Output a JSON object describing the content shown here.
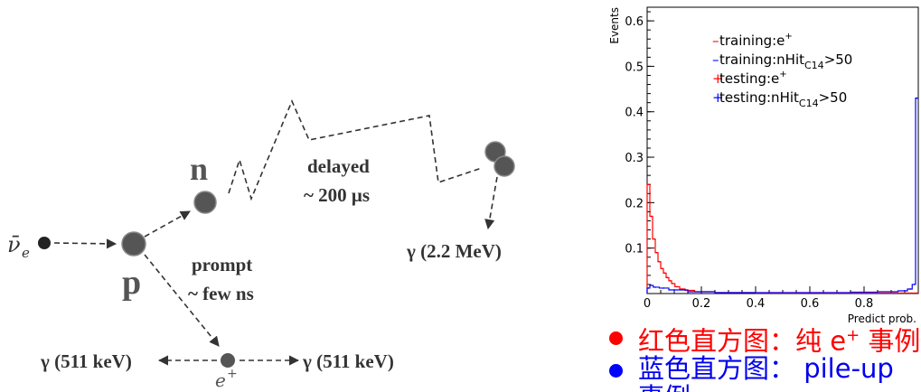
{
  "diagram": {
    "particles": {
      "antineutrino": {
        "symbol": "ν̄",
        "subscript": "e"
      },
      "proton": "p",
      "neutron": "n",
      "positron": {
        "symbol": "e",
        "superscript": "+"
      }
    },
    "labels": {
      "delayed_line1": "delayed",
      "delayed_line2": "~ 200 μs",
      "prompt_line1": "prompt",
      "prompt_line2": "~ few ns",
      "gamma_capture": "γ (2.2 MeV)",
      "gamma_left": "γ (511 keV)",
      "gamma_right": "γ (511 keV)"
    },
    "colors": {
      "particle": "#555555",
      "particle_dark": "#222222",
      "text": "#333333"
    }
  },
  "chart_data": {
    "type": "histogram",
    "ylabel": "Events",
    "xlabel": "Predict prob.",
    "xlim": [
      0,
      1
    ],
    "ylim": [
      0,
      0.63
    ],
    "xticks": [
      "0",
      "0.2",
      "0.4",
      "0.6",
      "0.8"
    ],
    "yticks": [
      "0.1",
      "0.2",
      "0.3",
      "0.4",
      "0.5",
      "0.6"
    ],
    "legend": [
      {
        "marker": "–",
        "text": "training:e",
        "sup": "+",
        "color": "#ff0000"
      },
      {
        "marker": "–",
        "text": "training:nHit",
        "sub": "C14",
        "tail": ">50",
        "color": "#0000ff"
      },
      {
        "marker": "+",
        "text": "testing:e",
        "sup": "+",
        "color": "#ff0000"
      },
      {
        "marker": "+",
        "text": "testing:nHit",
        "sub": "C14",
        "tail": ">50",
        "color": "#0000ff"
      }
    ],
    "series": [
      {
        "name": "training:e+",
        "color": "#ff0000",
        "x": [
          0.005,
          0.015,
          0.025,
          0.035,
          0.045,
          0.055,
          0.065,
          0.075,
          0.085,
          0.095,
          0.11,
          0.13,
          0.15,
          0.2,
          0.3,
          0.5,
          0.7,
          0.9,
          0.975,
          0.995
        ],
        "values": [
          0.24,
          0.17,
          0.12,
          0.09,
          0.07,
          0.055,
          0.045,
          0.035,
          0.028,
          0.022,
          0.015,
          0.01,
          0.007,
          0.004,
          0.002,
          0.001,
          0.001,
          0.001,
          0.001,
          0.001
        ]
      },
      {
        "name": "training:nHitC14>50",
        "color": "#0000ff",
        "x": [
          0.005,
          0.015,
          0.03,
          0.06,
          0.1,
          0.2,
          0.3,
          0.4,
          0.5,
          0.6,
          0.7,
          0.8,
          0.9,
          0.95,
          0.97,
          0.985,
          0.995
        ],
        "values": [
          0.012,
          0.018,
          0.014,
          0.012,
          0.008,
          0.004,
          0.002,
          0.002,
          0.002,
          0.002,
          0.002,
          0.003,
          0.004,
          0.006,
          0.01,
          0.02,
          0.43
        ]
      }
    ]
  },
  "bullets": [
    {
      "color": "#ff0000",
      "text": "红色直方图：纯 e",
      "sup": "+",
      "tail": " 事例"
    },
    {
      "color": "#0000ff",
      "text": "蓝色直方图： pile-up",
      "sup": "",
      "tail": ""
    }
  ],
  "bullets_overflow": "事例"
}
